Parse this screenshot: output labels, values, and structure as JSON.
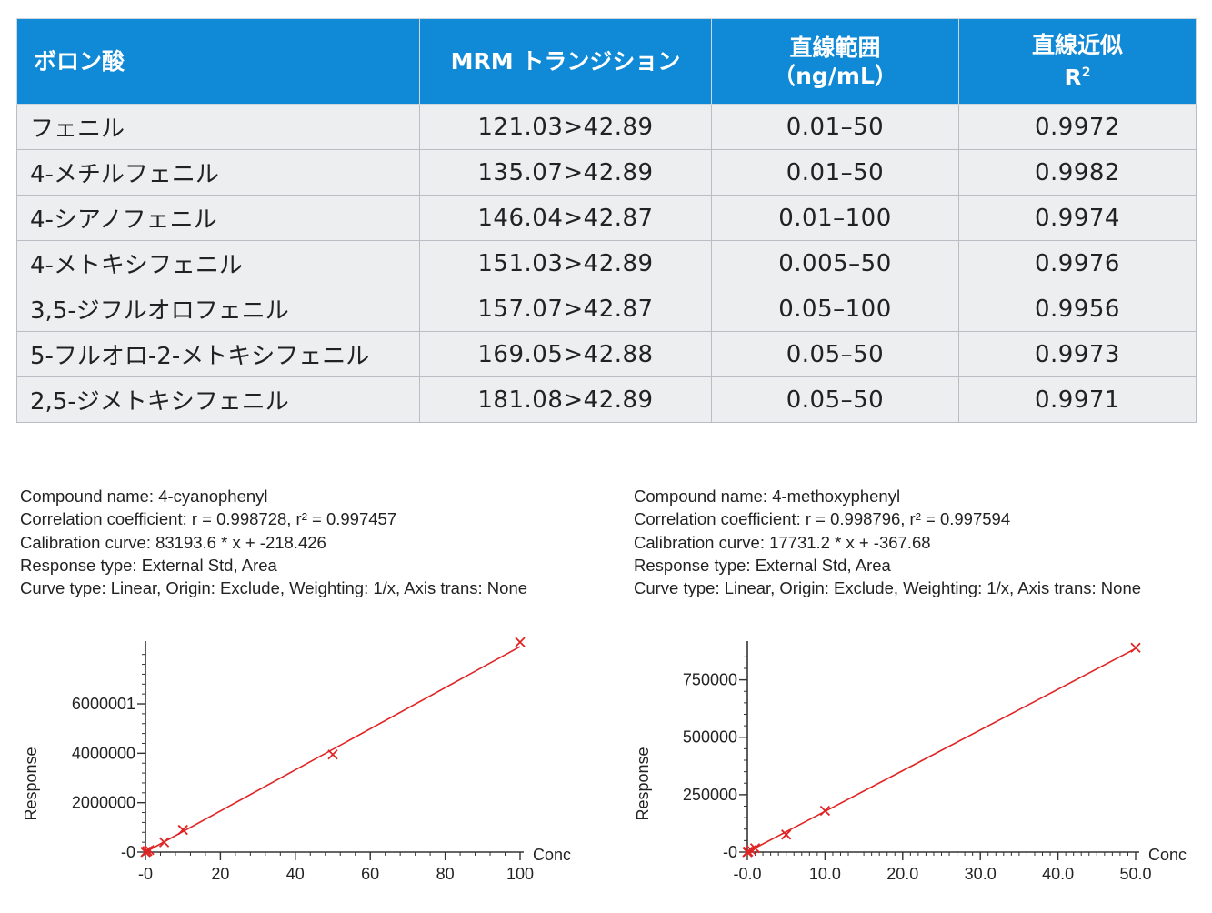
{
  "table": {
    "headers": {
      "name": "ボロン酸",
      "mrm": "MRM トランジション",
      "range_line1": "直線範囲",
      "range_line2": "（ng/mL）",
      "r2_line1": "直線近似",
      "r2_line2": "R"
    },
    "rows": [
      {
        "name": "フェニル",
        "mrm": "121.03>42.89",
        "range": "0.01–50",
        "r2": "0.9972"
      },
      {
        "name": "4-メチルフェニル",
        "mrm": "135.07>42.89",
        "range": "0.01–50",
        "r2": "0.9982"
      },
      {
        "name": "4-シアノフェニル",
        "mrm": "146.04>42.87",
        "range": "0.01–100",
        "r2": "0.9974"
      },
      {
        "name": "4-メトキシフェニル",
        "mrm": "151.03>42.89",
        "range": "0.005–50",
        "r2": "0.9976"
      },
      {
        "name": "3,5-ジフルオロフェニル",
        "mrm": "157.07>42.87",
        "range": "0.05–100",
        "r2": "0.9956"
      },
      {
        "name": "5-フルオロ-2-メトキシフェニル",
        "mrm": "169.05>42.88",
        "range": "0.05–50",
        "r2": "0.9973"
      },
      {
        "name": "2,5-ジメトキシフェニル",
        "mrm": "181.08>42.89",
        "range": "0.05–50",
        "r2": "0.9971"
      }
    ]
  },
  "colors": {
    "header_bg": "#1089d6",
    "row_bg": "#eceef0",
    "curve": "#e02424"
  },
  "chart_data": [
    {
      "type": "scatter",
      "info": [
        "Compound name: 4-cyanophenyl",
        "Correlation coefficient: r = 0.998728, r² = 0.997457",
        "Calibration curve: 83193.6 * x + -218.426",
        "Response type: External Std, Area",
        "Curve type: Linear, Origin: Exclude, Weighting: 1/x, Axis trans: None"
      ],
      "xlabel": "Conc",
      "ylabel": "Response",
      "xlim": [
        0,
        100
      ],
      "ylim": [
        0,
        8320000
      ],
      "x_ticks": [
        {
          "v": 0,
          "label": "-0"
        },
        {
          "v": 20,
          "label": "20"
        },
        {
          "v": 40,
          "label": "40"
        },
        {
          "v": 60,
          "label": "60"
        },
        {
          "v": 80,
          "label": "80"
        },
        {
          "v": 100,
          "label": "100"
        }
      ],
      "y_ticks": [
        {
          "v": 0,
          "label": "-0"
        },
        {
          "v": 2000000,
          "label": "2000000"
        },
        {
          "v": 4000000,
          "label": "4000000"
        },
        {
          "v": 6000001,
          "label": "6000001"
        }
      ],
      "x_minor_step": 4,
      "y_minor_step": 400000,
      "points": [
        {
          "x": 0.01,
          "y": 600
        },
        {
          "x": 0.05,
          "y": 3900
        },
        {
          "x": 0.1,
          "y": 8000
        },
        {
          "x": 0.5,
          "y": 40000
        },
        {
          "x": 1,
          "y": 82000
        },
        {
          "x": 5,
          "y": 395000
        },
        {
          "x": 10,
          "y": 900000
        },
        {
          "x": 50,
          "y": 3950000
        },
        {
          "x": 100,
          "y": 8500000
        }
      ],
      "fit": {
        "slope": 83193.6,
        "intercept": -218.426
      }
    },
    {
      "type": "scatter",
      "info": [
        "Compound name: 4-methoxyphenyl",
        "Correlation coefficient: r = 0.998796, r² = 0.997594",
        "Calibration curve: 17731.2 * x + -367.68",
        "Response type: External Std, Area",
        "Curve type: Linear, Origin: Exclude, Weighting: 1/x, Axis trans: None"
      ],
      "xlabel": "Conc",
      "ylabel": "Response",
      "xlim": [
        0,
        50
      ],
      "ylim": [
        0,
        895000
      ],
      "x_ticks": [
        {
          "v": 0,
          "label": "-0.0"
        },
        {
          "v": 10,
          "label": "10.0"
        },
        {
          "v": 20,
          "label": "20.0"
        },
        {
          "v": 30,
          "label": "30.0"
        },
        {
          "v": 40,
          "label": "40.0"
        },
        {
          "v": 50,
          "label": "50.0"
        }
      ],
      "y_ticks": [
        {
          "v": 0,
          "label": "-0"
        },
        {
          "v": 250000,
          "label": "250000"
        },
        {
          "v": 500000,
          "label": "500000"
        },
        {
          "v": 750000,
          "label": "750000"
        }
      ],
      "x_minor_step": 1,
      "y_minor_step": 50000,
      "points": [
        {
          "x": 0.005,
          "y": 100
        },
        {
          "x": 0.01,
          "y": 200
        },
        {
          "x": 0.05,
          "y": 900
        },
        {
          "x": 0.1,
          "y": 1800
        },
        {
          "x": 0.5,
          "y": 8500
        },
        {
          "x": 1,
          "y": 17000
        },
        {
          "x": 5,
          "y": 76000
        },
        {
          "x": 10,
          "y": 180000
        },
        {
          "x": 50,
          "y": 890000
        }
      ],
      "fit": {
        "slope": 17731.2,
        "intercept": -367.68
      }
    }
  ]
}
